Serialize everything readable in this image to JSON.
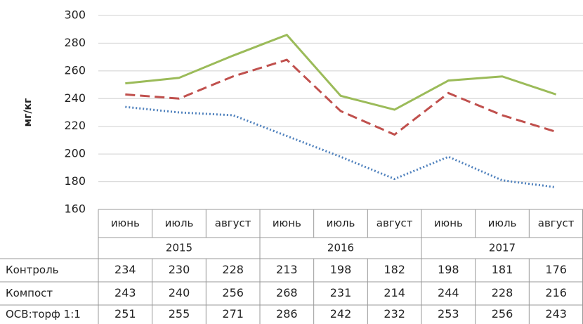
{
  "chart_data": {
    "type": "line",
    "y_label": "мг/кг",
    "categories": [
      "июнь",
      "июль",
      "август",
      "июнь",
      "июль",
      "август",
      "июнь",
      "июль",
      "август"
    ],
    "years": [
      "2015",
      "2016",
      "2017"
    ],
    "series": [
      {
        "name": "Контроль",
        "color": "#4f81bd",
        "style": "dotted",
        "values": [
          234,
          230,
          228,
          213,
          198,
          182,
          198,
          181,
          176
        ]
      },
      {
        "name": "Компост",
        "color": "#c0504d",
        "style": "dashed",
        "values": [
          243,
          240,
          256,
          268,
          231,
          214,
          244,
          228,
          216
        ]
      },
      {
        "name": "ОСВ:торф 1:1",
        "color": "#9bbb59",
        "style": "solid",
        "values": [
          251,
          255,
          271,
          286,
          242,
          232,
          253,
          256,
          243
        ]
      }
    ],
    "ylim": [
      160,
      300
    ],
    "yticks": [
      160,
      180,
      200,
      220,
      240,
      260,
      280,
      300
    ],
    "grid": true
  }
}
